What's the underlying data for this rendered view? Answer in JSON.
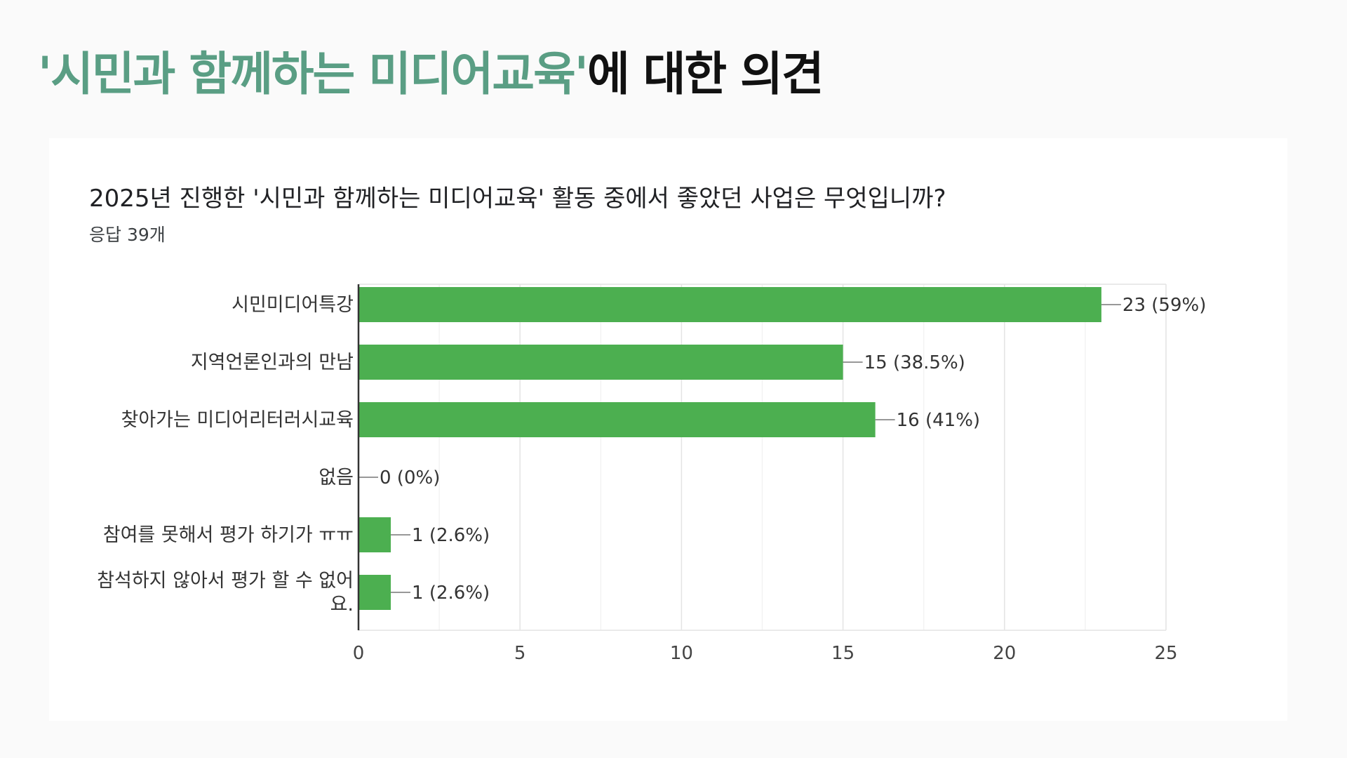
{
  "slide": {
    "title_accent": "'시민과 함께하는 미디어교육'",
    "title_rest": "에 대한 의견"
  },
  "question": "2025년 진행한  '시민과 함께하는 미디어교육' 활동 중에서 좋았던 사업은 무엇입니까?",
  "responses": "응답 39개",
  "chart_data": {
    "type": "bar",
    "orientation": "horizontal",
    "title": "",
    "xlabel": "",
    "ylabel": "",
    "xlim": [
      0,
      25
    ],
    "x_ticks": [
      0,
      5,
      10,
      15,
      20,
      25
    ],
    "grid": true,
    "categories": [
      [
        "시민미디어특강"
      ],
      [
        "지역언론인과의 만남"
      ],
      [
        "찾아가는 미디어리터러시교육"
      ],
      [
        "없음"
      ],
      [
        "참여를 못해서 평가 하기가 ㅠㅠ"
      ],
      [
        "참석하지 않아서 평가 할 수 없어",
        "요."
      ]
    ],
    "values": [
      23,
      15,
      16,
      0,
      1,
      1
    ],
    "value_labels": [
      "23 (59%)",
      "15 (38.5%)",
      "16 (41%)",
      "0 (0%)",
      "1 (2.6%)",
      "1 (2.6%)"
    ],
    "bar_color": "#4caf50"
  }
}
